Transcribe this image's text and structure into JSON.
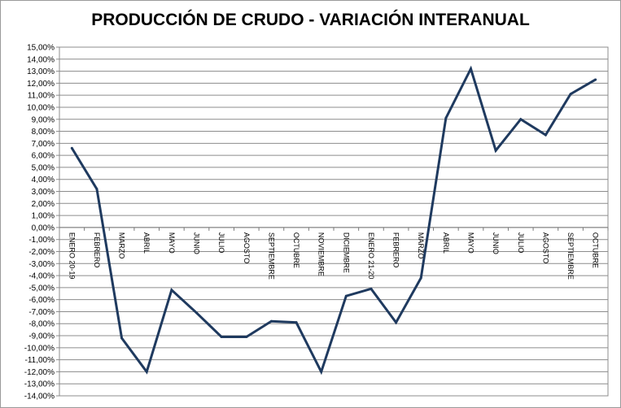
{
  "chart_data": {
    "type": "line",
    "title": "PRODUCCIÓN DE CRUDO - VARIACIÓN INTERANUAL",
    "xlabel": "",
    "ylabel": "",
    "ylim": [
      -14,
      15
    ],
    "y_tick_step": 1,
    "y_tick_format": "percent_comma_2",
    "grid": true,
    "legend": "none",
    "line_color": "#1f3a5f",
    "categories": [
      "ENERO 20-19",
      "FEBRERO",
      "MARZO",
      "ABRIL",
      "MAYO",
      "JUNIO",
      "JULIO",
      "AGOSTO",
      "SEPTIEMBRE",
      "OCTUBRE",
      "NOVIEMBRE",
      "DICIEMBRE",
      "ENERO 21-20",
      "FEBRERO",
      "MARZO",
      "ABRIL",
      "MAYO",
      "JUNIO",
      "JULIO",
      "AGOSTO",
      "SEPTIEMBRE",
      "OCTUBRE"
    ],
    "series": [
      {
        "values": [
          6.6,
          3.2,
          -9.2,
          -12.0,
          -5.2,
          -7.1,
          -9.1,
          -9.1,
          -7.8,
          -7.9,
          -12.0,
          -5.7,
          -5.1,
          -7.9,
          -4.2,
          9.1,
          13.2,
          6.4,
          9.0,
          7.7,
          11.1,
          12.3
        ]
      }
    ]
  }
}
